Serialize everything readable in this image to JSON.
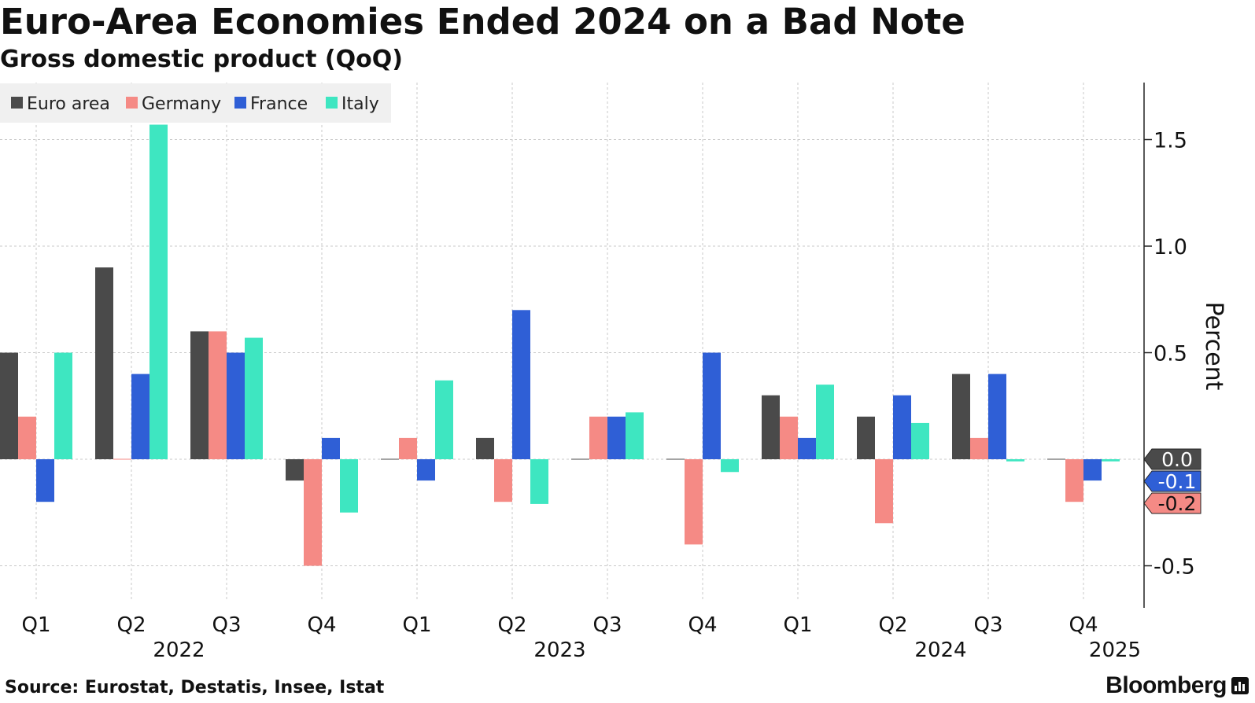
{
  "title": "Euro-Area Economies Ended 2024 on a Bad Note",
  "subtitle": "Gross domestic product (QoQ)",
  "source": "Source: Eurostat, Destatis, Insee, Istat",
  "brand": "Bloomberg",
  "brand_icon": "bloomberg-logo-icon",
  "colors": {
    "euro_area": "#4a4a4a",
    "germany": "#f58a85",
    "france": "#2f5fd6",
    "italy": "#3ee6c1",
    "grid": "#c8c8c8",
    "axis": "#222222",
    "legend_bg": "#f0f0f0"
  },
  "chart_data": {
    "type": "bar",
    "ylabel": "Percent",
    "ylim": [
      -0.7,
      1.75
    ],
    "yticks": [
      -0.5,
      0.5,
      1.0,
      1.5
    ],
    "ytick_labels": [
      "-0.5",
      "0.5",
      "1.0",
      "1.5"
    ],
    "y_axis_position": "right",
    "grid": true,
    "legend_position": "top-left",
    "categories": [
      "Q1",
      "Q2",
      "Q3",
      "Q4",
      "Q1",
      "Q2",
      "Q3",
      "Q4",
      "Q1",
      "Q2",
      "Q3",
      "Q4"
    ],
    "year_labels": [
      {
        "label": "2022",
        "between": [
          1,
          2
        ]
      },
      {
        "label": "2023",
        "between": [
          5,
          6
        ]
      },
      {
        "label": "2024",
        "between": [
          9,
          10
        ]
      },
      {
        "label": "2025",
        "between": [
          11,
          11
        ]
      }
    ],
    "series": [
      {
        "name": "Euro area",
        "color_key": "euro_area",
        "values": [
          0.5,
          0.9,
          0.6,
          -0.1,
          0.0,
          0.1,
          0.0,
          0.0,
          0.3,
          0.2,
          0.4,
          0.0
        ]
      },
      {
        "name": "Germany",
        "color_key": "germany",
        "values": [
          0.2,
          0.0,
          0.6,
          -0.5,
          0.1,
          -0.2,
          0.2,
          -0.4,
          0.2,
          -0.3,
          0.1,
          -0.2
        ]
      },
      {
        "name": "France",
        "color_key": "france",
        "values": [
          -0.2,
          0.4,
          0.5,
          0.1,
          -0.1,
          0.7,
          0.2,
          0.5,
          0.1,
          0.3,
          0.4,
          -0.1
        ]
      },
      {
        "name": "Italy",
        "color_key": "italy",
        "values": [
          0.5,
          1.57,
          0.57,
          -0.25,
          0.37,
          -0.21,
          0.22,
          -0.06,
          0.35,
          0.17,
          -0.01,
          -0.01
        ]
      }
    ],
    "last_value_tags": [
      {
        "label": "0.0",
        "series": "Euro area",
        "value": 0.0
      },
      {
        "label": "-0.1",
        "series": "France",
        "value": -0.1
      },
      {
        "label": "-0.2",
        "series": "Germany",
        "value": -0.2
      }
    ]
  }
}
